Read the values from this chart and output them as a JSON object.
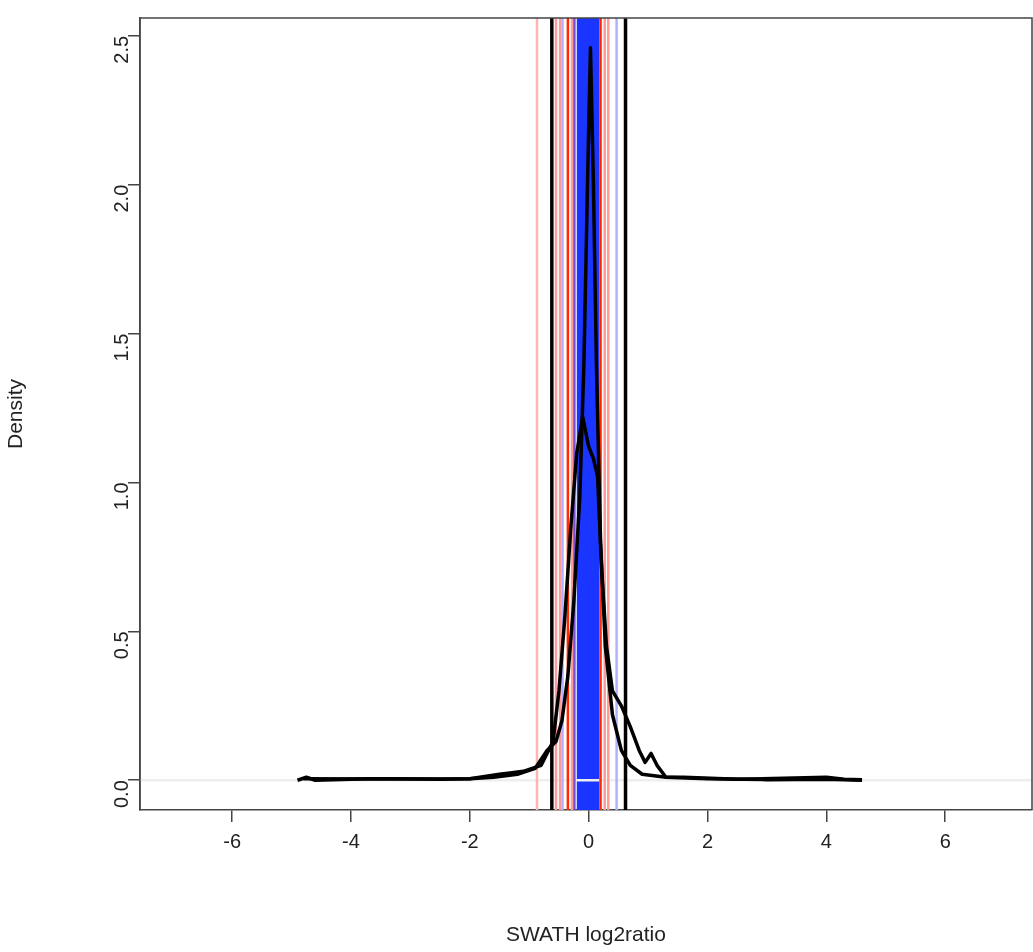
{
  "chart_data": {
    "type": "line",
    "xlabel": "SWATH log2ratio",
    "ylabel": "Density",
    "xlim": [
      -7.55,
      7.46
    ],
    "xticks": [
      -6,
      -4,
      -2,
      0,
      2,
      4,
      6
    ],
    "ylim": [
      -0.1,
      2.56
    ],
    "yticks": [
      {
        "value": 0,
        "label": "0.0"
      },
      {
        "value": 0.5,
        "label": "0.5"
      },
      {
        "value": 1,
        "label": "1.0"
      },
      {
        "value": 1.5,
        "label": "1.5"
      },
      {
        "value": 2,
        "label": "2.0"
      },
      {
        "value": 2.5,
        "label": "2.5"
      }
    ],
    "grid": false,
    "legend": false,
    "bands": [
      {
        "axis": "x",
        "from": -0.2,
        "to": 0.18,
        "color": "#1a35ff"
      }
    ],
    "ref_lines": [
      {
        "axis": "y",
        "value": 0,
        "color": "#eeeeee"
      },
      {
        "axis": "x",
        "value": -0.87,
        "color": "#ffb3b3"
      },
      {
        "axis": "x",
        "value": -0.55,
        "color": "#ff9a9a"
      },
      {
        "axis": "x",
        "value": -0.48,
        "color": "#ff9a9a"
      },
      {
        "axis": "x",
        "value": -0.44,
        "color": "#b0b0ff"
      },
      {
        "axis": "x",
        "value": -0.35,
        "color": "#ff2a00"
      },
      {
        "axis": "x",
        "value": -0.28,
        "color": "#ff9a9a"
      },
      {
        "axis": "x",
        "value": -0.24,
        "color": "#7a4fd0"
      },
      {
        "axis": "x",
        "value": 0.2,
        "color": "#ff2a00"
      },
      {
        "axis": "x",
        "value": 0.27,
        "color": "#ff9a9a"
      },
      {
        "axis": "x",
        "value": 0.33,
        "color": "#ff9a9a"
      },
      {
        "axis": "x",
        "value": 0.47,
        "color": "#b0b0ff"
      },
      {
        "axis": "x",
        "value": -0.62,
        "color": "#000000"
      },
      {
        "axis": "x",
        "value": 0.62,
        "color": "#000000"
      }
    ],
    "series": [
      {
        "color": "#000000",
        "x": [
          -4.9,
          -4.75,
          -4.6,
          -3.7,
          -3.3,
          -2.5,
          -2,
          -1.6,
          -1.2,
          -0.9,
          -0.7,
          -0.55,
          -0.45,
          -0.35,
          -0.25,
          -0.15,
          -0.08,
          -0.02,
          0.03,
          0.08,
          0.13,
          0.2,
          0.28,
          0.4,
          0.55,
          0.7,
          0.9,
          1.3,
          2,
          3,
          4,
          4.6
        ],
        "values": [
          0,
          0.01,
          0,
          0.005,
          0.005,
          0.003,
          0.005,
          0.01,
          0.02,
          0.04,
          0.1,
          0.13,
          0.2,
          0.35,
          0.6,
          0.95,
          1.4,
          2,
          2.46,
          2,
          1.4,
          0.8,
          0.45,
          0.22,
          0.1,
          0.05,
          0.02,
          0.01,
          0.005,
          0.002,
          0.003,
          0
        ]
      },
      {
        "color": "#000000",
        "x": [
          -4.8,
          -3.5,
          -2,
          -1.5,
          -1.1,
          -0.8,
          -0.6,
          -0.5,
          -0.4,
          -0.3,
          -0.2,
          -0.1,
          0,
          0.08,
          0.15,
          0.22,
          0.3,
          0.4,
          0.55,
          0.7,
          0.85,
          0.95,
          1.05,
          1.15,
          1.3,
          1.6,
          2.5,
          4,
          4.3,
          4.6
        ],
        "values": [
          0.005,
          0.004,
          0.005,
          0.02,
          0.03,
          0.05,
          0.13,
          0.3,
          0.55,
          0.85,
          1.1,
          1.22,
          1.12,
          1.08,
          1.02,
          0.7,
          0.45,
          0.3,
          0.25,
          0.18,
          0.1,
          0.06,
          0.09,
          0.05,
          0.01,
          0.01,
          0.003,
          0.01,
          0.003,
          0.002
        ]
      }
    ]
  }
}
